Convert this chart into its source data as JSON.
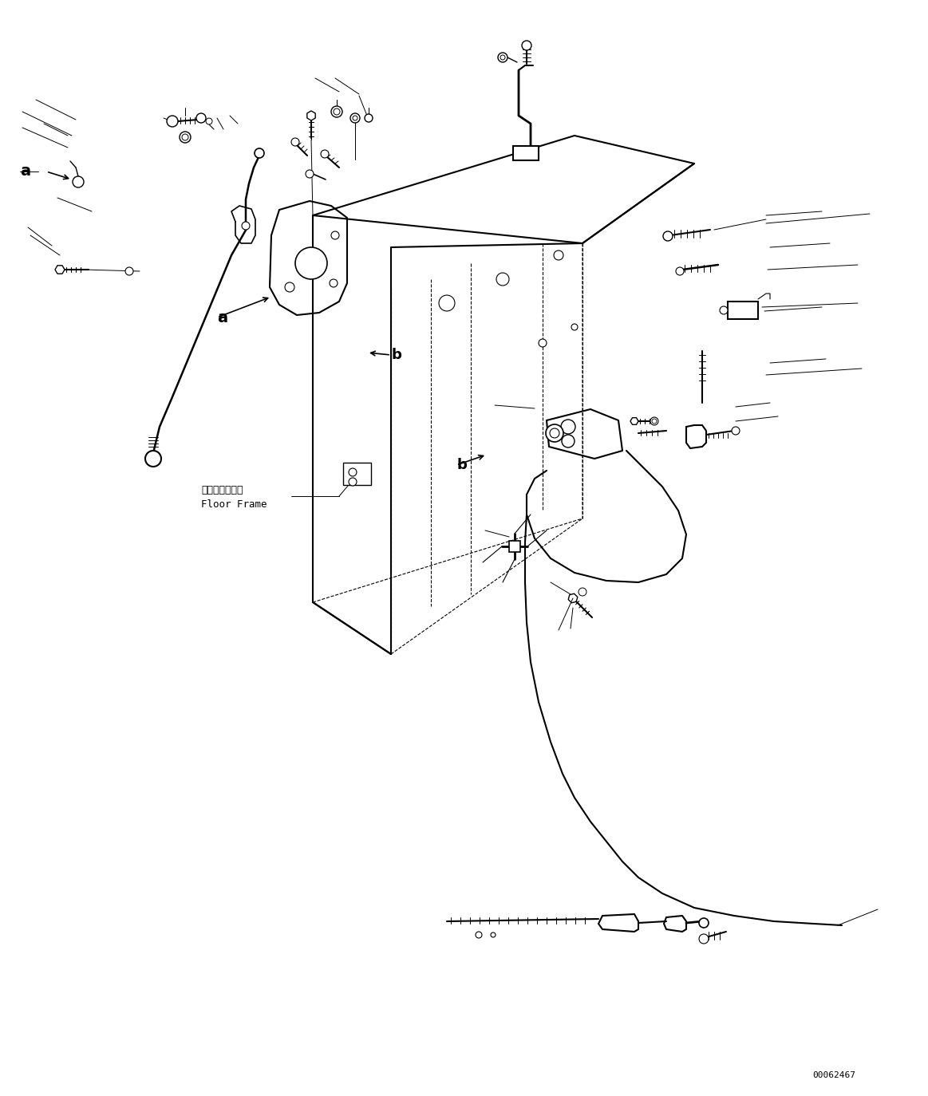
{
  "fig_width": 11.63,
  "fig_height": 13.74,
  "dpi": 100,
  "bg_color": "#ffffff",
  "line_color": "#000000",
  "part_id": "00062467",
  "label_a": "a",
  "label_b": "b",
  "floor_frame_jp": "フロアフレーム",
  "floor_frame_en": "Floor Frame",
  "id_fontsize": 8
}
